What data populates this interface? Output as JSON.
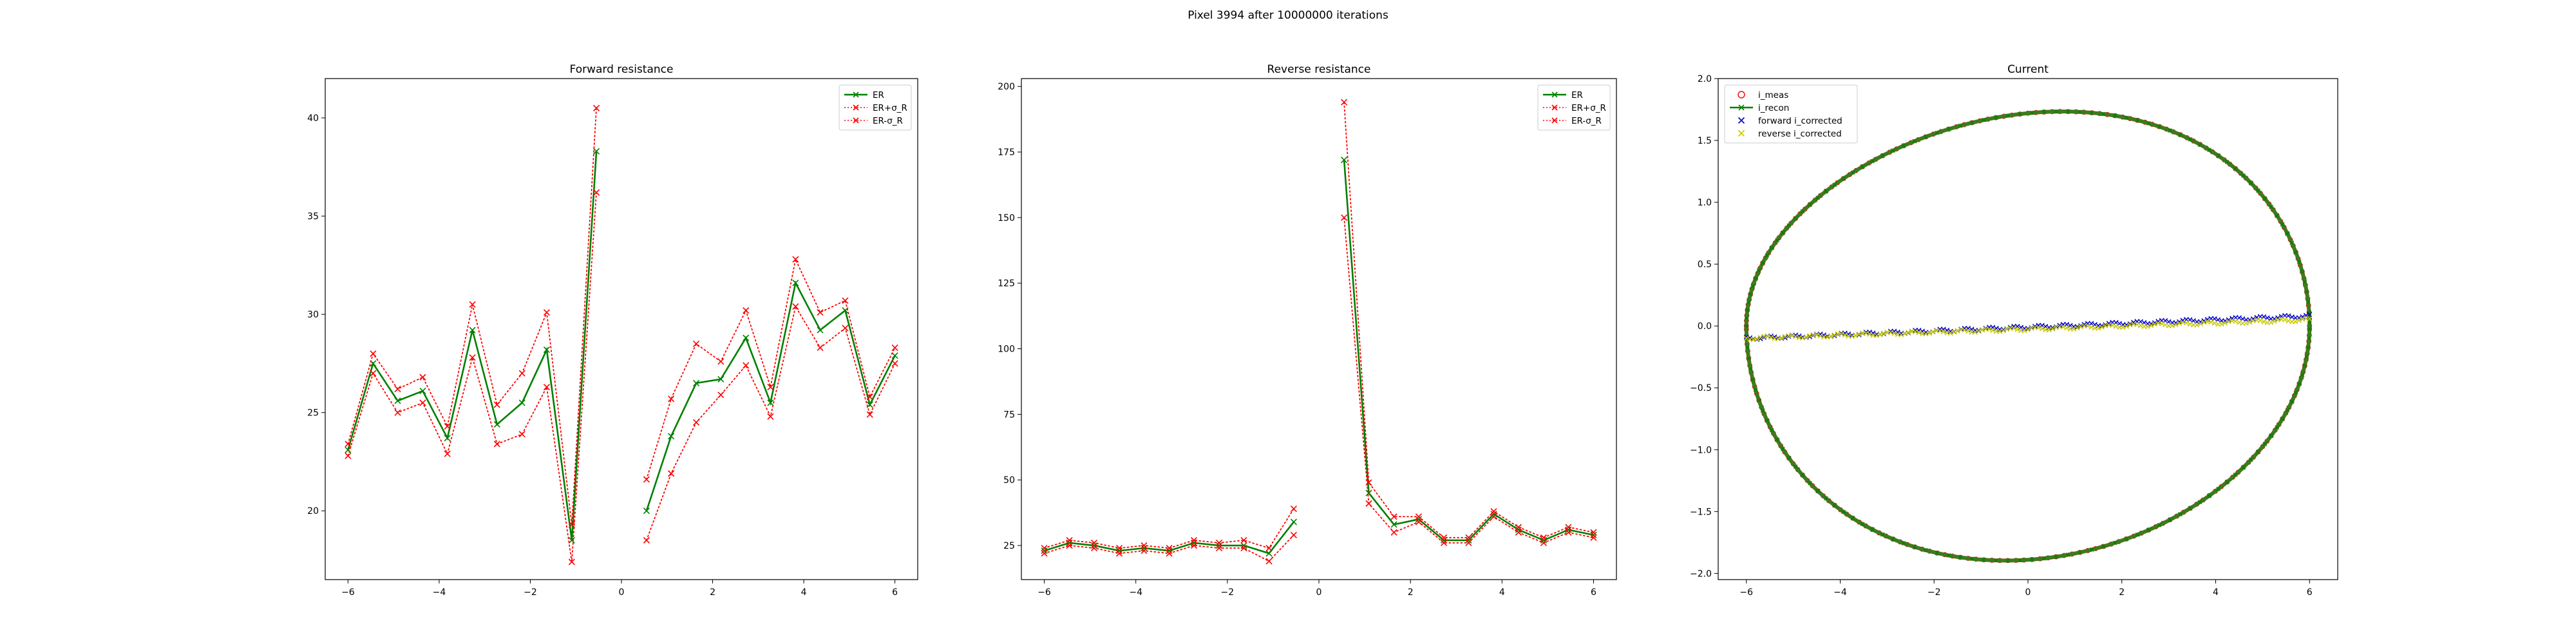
{
  "suptitle": "Pixel 3994 after 10000000 iterations",
  "colors": {
    "er": "#008000",
    "bound": "#ff0000",
    "meas": "#ff0000",
    "forward": "#0000cc",
    "reverse": "#c8c800"
  },
  "chart_data": [
    {
      "type": "line",
      "title": "Forward resistance",
      "xlim": [
        -6.5,
        6.5
      ],
      "ylim": [
        16.5,
        42
      ],
      "xticks": [
        -6,
        -4,
        -2,
        0,
        2,
        4,
        6
      ],
      "yticks": [
        20,
        25,
        30,
        35,
        40
      ],
      "xtick_labels": [
        "−6",
        "−4",
        "−2",
        "0",
        "2",
        "4",
        "6"
      ],
      "ytick_labels": [
        "20",
        "25",
        "30",
        "35",
        "40"
      ],
      "legend_position": "upper right",
      "series": [
        {
          "name": "ER",
          "style": "solid",
          "marker": "x",
          "color": "#008000",
          "segments": [
            {
              "x": [
                -6.0,
                -5.45,
                -4.91,
                -4.36,
                -3.82,
                -3.27,
                -2.73,
                -2.18,
                -1.64,
                -1.09,
                -0.55
              ],
              "y": [
                23.1,
                27.5,
                25.6,
                26.1,
                23.7,
                29.2,
                24.4,
                25.5,
                28.2,
                18.5,
                38.3
              ]
            },
            {
              "x": [
                0.55,
                1.09,
                1.64,
                2.18,
                2.73,
                3.27,
                3.82,
                4.36,
                4.91,
                5.45,
                6.0
              ],
              "y": [
                20.0,
                23.8,
                26.5,
                26.7,
                28.8,
                25.5,
                31.6,
                29.2,
                30.2,
                25.4,
                27.9
              ]
            }
          ]
        },
        {
          "name": "ER+σ_R",
          "style": "dotted",
          "marker": "x",
          "color": "#ff0000",
          "segments": [
            {
              "x": [
                -6.0,
                -5.45,
                -4.91,
                -4.36,
                -3.82,
                -3.27,
                -2.73,
                -2.18,
                -1.64,
                -1.09,
                -0.55
              ],
              "y": [
                23.4,
                28.0,
                26.2,
                26.8,
                24.3,
                30.5,
                25.4,
                27.0,
                30.1,
                19.3,
                40.5
              ]
            },
            {
              "x": [
                0.55,
                1.09,
                1.64,
                2.18,
                2.73,
                3.27,
                3.82,
                4.36,
                4.91,
                5.45,
                6.0
              ],
              "y": [
                21.6,
                25.7,
                28.5,
                27.6,
                30.2,
                26.3,
                32.8,
                30.1,
                30.7,
                25.8,
                28.3
              ]
            }
          ]
        },
        {
          "name": "ER-σ_R",
          "style": "dotted",
          "marker": "x",
          "color": "#ff0000",
          "segments": [
            {
              "x": [
                -6.0,
                -5.45,
                -4.91,
                -4.36,
                -3.82,
                -3.27,
                -2.73,
                -2.18,
                -1.64,
                -1.09,
                -0.55
              ],
              "y": [
                22.8,
                27.0,
                25.0,
                25.5,
                22.9,
                27.8,
                23.4,
                23.9,
                26.3,
                17.4,
                36.2
              ]
            },
            {
              "x": [
                0.55,
                1.09,
                1.64,
                2.18,
                2.73,
                3.27,
                3.82,
                4.36,
                4.91,
                5.45,
                6.0
              ],
              "y": [
                18.5,
                21.9,
                24.5,
                25.9,
                27.4,
                24.8,
                30.4,
                28.3,
                29.3,
                24.9,
                27.5
              ]
            }
          ]
        }
      ]
    },
    {
      "type": "line",
      "title": "Reverse resistance",
      "xlim": [
        -6.5,
        6.5
      ],
      "ylim": [
        12,
        203
      ],
      "xticks": [
        -6,
        -4,
        -2,
        0,
        2,
        4,
        6
      ],
      "yticks": [
        25,
        50,
        75,
        100,
        125,
        150,
        175,
        200
      ],
      "xtick_labels": [
        "−6",
        "−4",
        "−2",
        "0",
        "2",
        "4",
        "6"
      ],
      "ytick_labels": [
        "25",
        "50",
        "75",
        "100",
        "125",
        "150",
        "175",
        "200"
      ],
      "legend_position": "upper right",
      "series": [
        {
          "name": "ER",
          "style": "solid",
          "marker": "x",
          "color": "#008000",
          "segments": [
            {
              "x": [
                -6.0,
                -5.45,
                -4.91,
                -4.36,
                -3.82,
                -3.27,
                -2.73,
                -2.18,
                -1.64,
                -1.09,
                -0.55
              ],
              "y": [
                23,
                26,
                25,
                23,
                24,
                23,
                26,
                25,
                25,
                22,
                34
              ]
            },
            {
              "x": [
                0.55,
                1.09,
                1.64,
                2.18,
                2.73,
                3.27,
                3.82,
                4.36,
                4.91,
                5.45,
                6.0
              ],
              "y": [
                172,
                45,
                33,
                35,
                27,
                27,
                37,
                31,
                27,
                31,
                29
              ]
            }
          ]
        },
        {
          "name": "ER+σ_R",
          "style": "dotted",
          "marker": "x",
          "color": "#ff0000",
          "segments": [
            {
              "x": [
                -6.0,
                -5.45,
                -4.91,
                -4.36,
                -3.82,
                -3.27,
                -2.73,
                -2.18,
                -1.64,
                -1.09,
                -0.55
              ],
              "y": [
                24,
                27,
                26,
                24,
                25,
                24,
                27,
                26,
                27,
                24,
                39
              ]
            },
            {
              "x": [
                0.55,
                1.09,
                1.64,
                2.18,
                2.73,
                3.27,
                3.82,
                4.36,
                4.91,
                5.45,
                6.0
              ],
              "y": [
                194,
                49,
                36,
                36,
                28,
                28,
                38,
                32,
                28,
                32,
                30
              ]
            }
          ]
        },
        {
          "name": "ER-σ_R",
          "style": "dotted",
          "marker": "x",
          "color": "#ff0000",
          "segments": [
            {
              "x": [
                -6.0,
                -5.45,
                -4.91,
                -4.36,
                -3.82,
                -3.27,
                -2.73,
                -2.18,
                -1.64,
                -1.09,
                -0.55
              ],
              "y": [
                22,
                25,
                24,
                22,
                23,
                22,
                25,
                24,
                24,
                19,
                29
              ]
            },
            {
              "x": [
                0.55,
                1.09,
                1.64,
                2.18,
                2.73,
                3.27,
                3.82,
                4.36,
                4.91,
                5.45,
                6.0
              ],
              "y": [
                150,
                41,
                30,
                34,
                26,
                26,
                36,
                30,
                26,
                30,
                28
              ]
            }
          ]
        }
      ]
    },
    {
      "type": "scatter",
      "title": "Current",
      "xlim": [
        -6.6,
        6.6
      ],
      "ylim": [
        -2.05,
        2.0
      ],
      "xticks": [
        -6,
        -4,
        -2,
        0,
        2,
        4,
        6
      ],
      "yticks": [
        -2.0,
        -1.5,
        -1.0,
        -0.5,
        0.0,
        0.5,
        1.0,
        1.5,
        2.0
      ],
      "xtick_labels": [
        "−6",
        "−4",
        "−2",
        "0",
        "2",
        "4",
        "6"
      ],
      "ytick_labels": [
        "−2.0",
        "−1.5",
        "−1.0",
        "−0.5",
        "0.0",
        "0.5",
        "1.0",
        "1.5",
        "2.0"
      ],
      "legend_position": "upper left",
      "series": [
        {
          "name": "i_meas",
          "marker": "circle-open",
          "color": "#ff0000",
          "shape": "loop",
          "x_range": [
            -6.0,
            6.0
          ],
          "upper_peak": 1.82,
          "lower_peak": -1.89
        },
        {
          "name": "i_recon",
          "marker": "x-line",
          "color": "#008000",
          "shape": "loop",
          "x_range": [
            -6.0,
            6.0
          ],
          "upper_peak": 1.82,
          "lower_peak": -1.89
        },
        {
          "name": "forward i_corrected",
          "marker": "x",
          "color": "#0000cc",
          "shape": "line",
          "x_range": [
            -6.0,
            6.0
          ],
          "y_start": -0.1,
          "y_end": 0.08
        },
        {
          "name": "reverse i_corrected",
          "marker": "x",
          "color": "#c8c800",
          "shape": "line",
          "x_range": [
            -6.0,
            6.0
          ],
          "y_start": -0.1,
          "y_end": 0.05
        }
      ]
    }
  ]
}
